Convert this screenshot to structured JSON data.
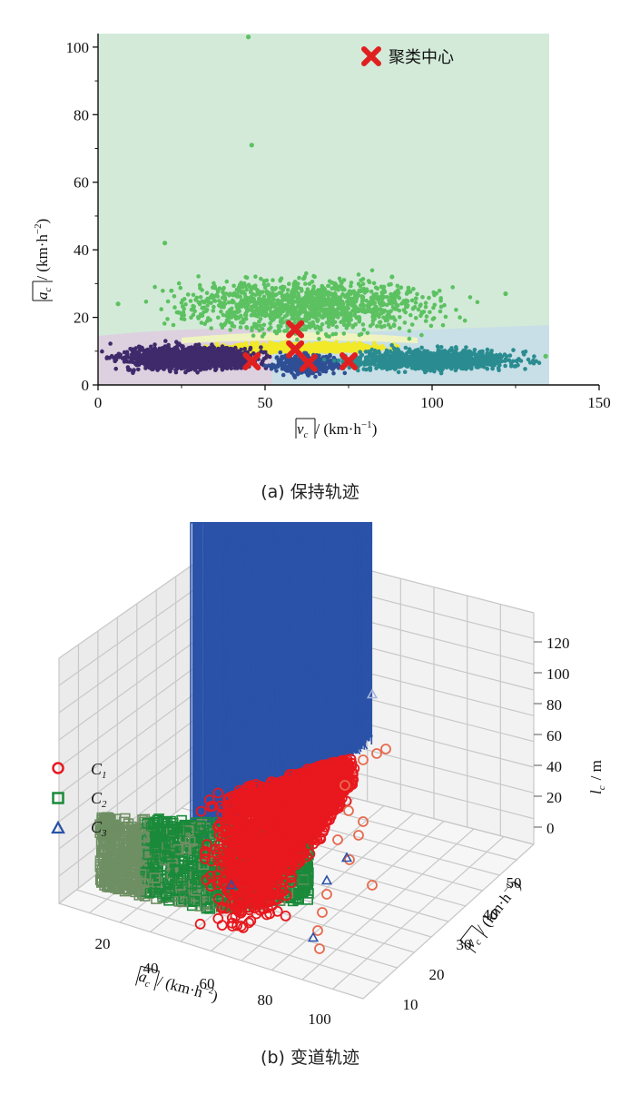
{
  "chart_data": [
    {
      "type": "scatter",
      "xlabel": "|v_c| / (km·h⁻¹)",
      "ylabel": "|a_c| / (km·h⁻²)",
      "xlim": [
        0,
        150
      ],
      "ylim": [
        0,
        104
      ],
      "xticks": [
        "0",
        "50",
        "100",
        "150"
      ],
      "yticks": [
        "0",
        "20",
        "40",
        "60",
        "80",
        "100"
      ],
      "legend": {
        "position": "top-right",
        "entries": [
          "聚类中心"
        ]
      },
      "caption": "(a)  保持轨迹",
      "colors": {
        "cluster_purple": "#3f2a6b",
        "cluster_navy": "#2f4f95",
        "cluster_teal": "#2a8c90",
        "cluster_yellow": "#f2e928",
        "cluster_green": "#5cc160",
        "center": "#e02020",
        "region_green": "#d3ead9",
        "region_purple": "#ddd1df",
        "region_blue": "#c8dfe7"
      },
      "centers": [
        {
          "x": 59,
          "y": 16.5
        },
        {
          "x": 59,
          "y": 10.5
        },
        {
          "x": 46,
          "y": 7
        },
        {
          "x": 63,
          "y": 6.5
        },
        {
          "x": 75,
          "y": 7
        }
      ],
      "clusters": [
        {
          "color": "cluster_green",
          "x_range": [
            10,
            115
          ],
          "y_range": [
            12,
            35
          ]
        },
        {
          "color": "cluster_yellow",
          "x_range": [
            28,
            95
          ],
          "y_range": [
            9,
            13
          ]
        },
        {
          "color": "cluster_purple",
          "x_range": [
            0,
            55
          ],
          "y_range": [
            3,
            13
          ]
        },
        {
          "color": "cluster_navy",
          "x_range": [
            50,
            75
          ],
          "y_range": [
            2,
            10
          ]
        },
        {
          "color": "cluster_teal",
          "x_range": [
            65,
            135
          ],
          "y_range": [
            3,
            12
          ]
        }
      ],
      "outliers": [
        {
          "x": 45,
          "y": 103
        },
        {
          "x": 46,
          "y": 71
        },
        {
          "x": 20,
          "y": 42
        },
        {
          "x": 6,
          "y": 24
        },
        {
          "x": 122,
          "y": 27
        },
        {
          "x": 88,
          "y": 32
        },
        {
          "x": 134,
          "y": 8.5
        }
      ]
    },
    {
      "type": "scatter",
      "xlabel": "|a_c| / (km·h⁻²)",
      "ylabel": "|v_c| / (km·h⁻¹)",
      "zlabel": "l_c / m",
      "xticks": [
        "20",
        "40",
        "60",
        "80",
        "100"
      ],
      "yticks": [
        "10",
        "20",
        "30",
        "40",
        "50"
      ],
      "zticks": [
        "0",
        "20",
        "40",
        "60",
        "80",
        "100",
        "120"
      ],
      "zlim": [
        0,
        120
      ],
      "legend": {
        "position": "left",
        "entries": [
          "C1",
          "C2",
          "C3"
        ]
      },
      "series": [
        {
          "name": "C1",
          "marker": "circle",
          "color": "#e8181e"
        },
        {
          "name": "C2",
          "marker": "square",
          "color": "#1a8a3a"
        },
        {
          "name": "C3",
          "marker": "triangle",
          "color": "#2a52a8"
        }
      ],
      "caption": "(b)  变道轨迹"
    }
  ],
  "legend_a": {
    "label": "聚类中心"
  },
  "axis_a": {
    "x_var": "v",
    "x_sub": "c",
    "x_unit": "/ (km·h",
    "x_exp": "−1",
    "x_close": ")",
    "y_var": "a",
    "y_sub": "c",
    "y_unit": "/ (km·h",
    "y_exp": "−2",
    "y_close": ")",
    "xticks": [
      "0",
      "50",
      "100",
      "150"
    ],
    "yticks": [
      "0",
      "20",
      "40",
      "60",
      "80",
      "100"
    ]
  },
  "axis_b": {
    "x_var": "a",
    "x_sub": "c",
    "x_unit": "/ (km·h",
    "x_exp": "−2",
    "x_close": ")",
    "y_var": "v",
    "y_sub": "c",
    "y_unit": "/ (km·h",
    "y_exp": "−1",
    "y_close": ")",
    "z_var": "l",
    "z_sub": "c",
    "z_unit": "/ m",
    "xticks": [
      "20",
      "40",
      "60",
      "80",
      "100"
    ],
    "yticks": [
      "10",
      "20",
      "30",
      "40",
      "50"
    ],
    "zticks": [
      "0",
      "20",
      "40",
      "60",
      "80",
      "100",
      "120"
    ],
    "legend": [
      {
        "var": "C",
        "sub": "1"
      },
      {
        "var": "C",
        "sub": "2"
      },
      {
        "var": "C",
        "sub": "3"
      }
    ]
  },
  "captions": {
    "a": "(a)  保持轨迹",
    "b": "(b)  变道轨迹"
  }
}
